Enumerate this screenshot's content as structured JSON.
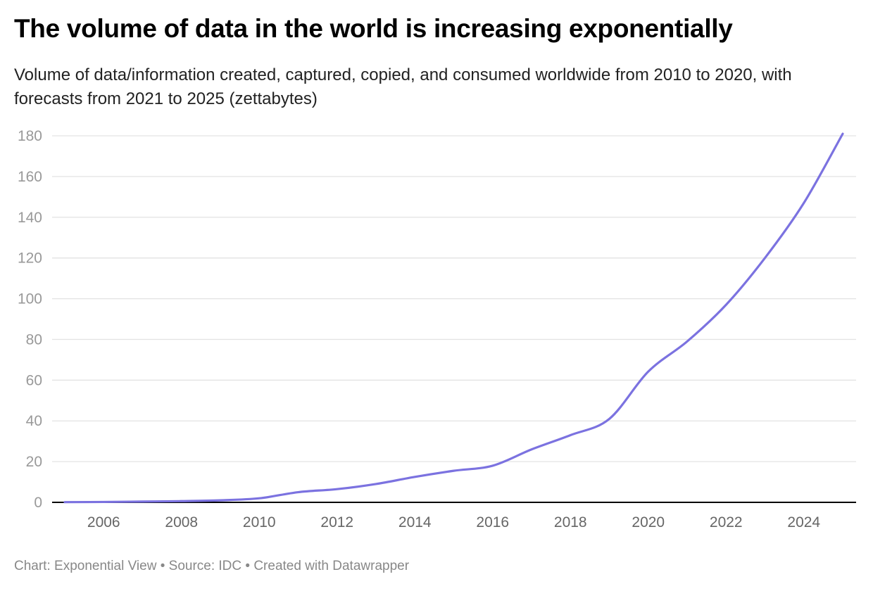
{
  "title": "The volume of data in the world is increasing exponentially",
  "subtitle": "Volume of data/information created, captured, copied, and consumed worldwide from 2010 to 2020, with forecasts from 2021 to 2025 (zettabytes)",
  "footer": "Chart: Exponential View • Source: IDC • Created with Datawrapper",
  "chart_data": {
    "type": "line",
    "title": "The volume of data in the world is increasing exponentially",
    "xlabel": "",
    "ylabel": "",
    "x": [
      2005,
      2006,
      2007,
      2008,
      2009,
      2010,
      2011,
      2012,
      2013,
      2014,
      2015,
      2016,
      2017,
      2018,
      2019,
      2020,
      2021,
      2022,
      2023,
      2024,
      2025
    ],
    "series": [
      {
        "values": [
          0.1,
          0.2,
          0.4,
          0.6,
          1.0,
          2,
          5,
          6.5,
          9,
          12.5,
          15.5,
          18,
          26,
          33,
          41,
          64.2,
          79,
          97,
          120,
          147,
          181
        ],
        "color": "#7b72e0"
      }
    ],
    "xlim": [
      2005,
      2025
    ],
    "ylim": [
      0,
      180
    ],
    "xticks": [
      "2006",
      "2008",
      "2010",
      "2012",
      "2014",
      "2016",
      "2018",
      "2020",
      "2022",
      "2024"
    ],
    "yticks": [
      "0",
      "20",
      "40",
      "60",
      "80",
      "100",
      "120",
      "140",
      "160",
      "180"
    ],
    "grid": "horizontal",
    "legend": "none"
  }
}
